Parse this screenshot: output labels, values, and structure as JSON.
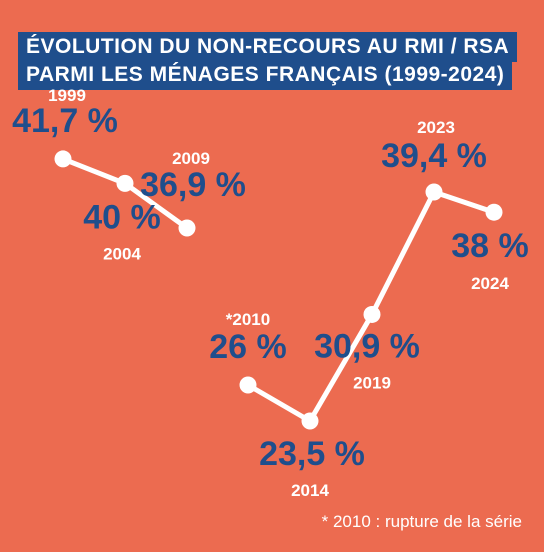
{
  "title": {
    "line1": "ÉVOLUTION DU NON-RECOURS AU RMI / RSA",
    "line2": "PARMI LES MÉNAGES FRANÇAIS (1999-2024)"
  },
  "footnote": "* 2010 : rupture de la série",
  "colors": {
    "background": "#ec6b50",
    "title_box": "#1f4e8c",
    "value_text": "#1f4e8c",
    "line": "#ffffff"
  },
  "chart_data": {
    "type": "line",
    "title": "ÉVOLUTION DU NON-RECOURS AU RMI / RSA PARMI LES MÉNAGES FRANÇAIS (1999-2024)",
    "series": [
      {
        "segment": 1,
        "points": [
          {
            "year_label": "1999",
            "value": 41.7,
            "value_label": "41,7 %"
          },
          {
            "year_label": "2004",
            "value": 40.0,
            "value_label": "40 %"
          },
          {
            "year_label": "2009",
            "value": 36.9,
            "value_label": "36,9 %"
          }
        ]
      },
      {
        "segment": 2,
        "points": [
          {
            "year_label": "*2010",
            "value": 26.0,
            "value_label": "26 %"
          },
          {
            "year_label": "2014",
            "value": 23.5,
            "value_label": "23,5 %"
          },
          {
            "year_label": "2019",
            "value": 30.9,
            "value_label": "30,9 %"
          },
          {
            "year_label": "2023",
            "value": 39.4,
            "value_label": "39,4 %"
          },
          {
            "year_label": "2024",
            "value": 38.0,
            "value_label": "38 %"
          }
        ]
      }
    ],
    "unit": "%",
    "grid": false,
    "axes_visible": false
  }
}
